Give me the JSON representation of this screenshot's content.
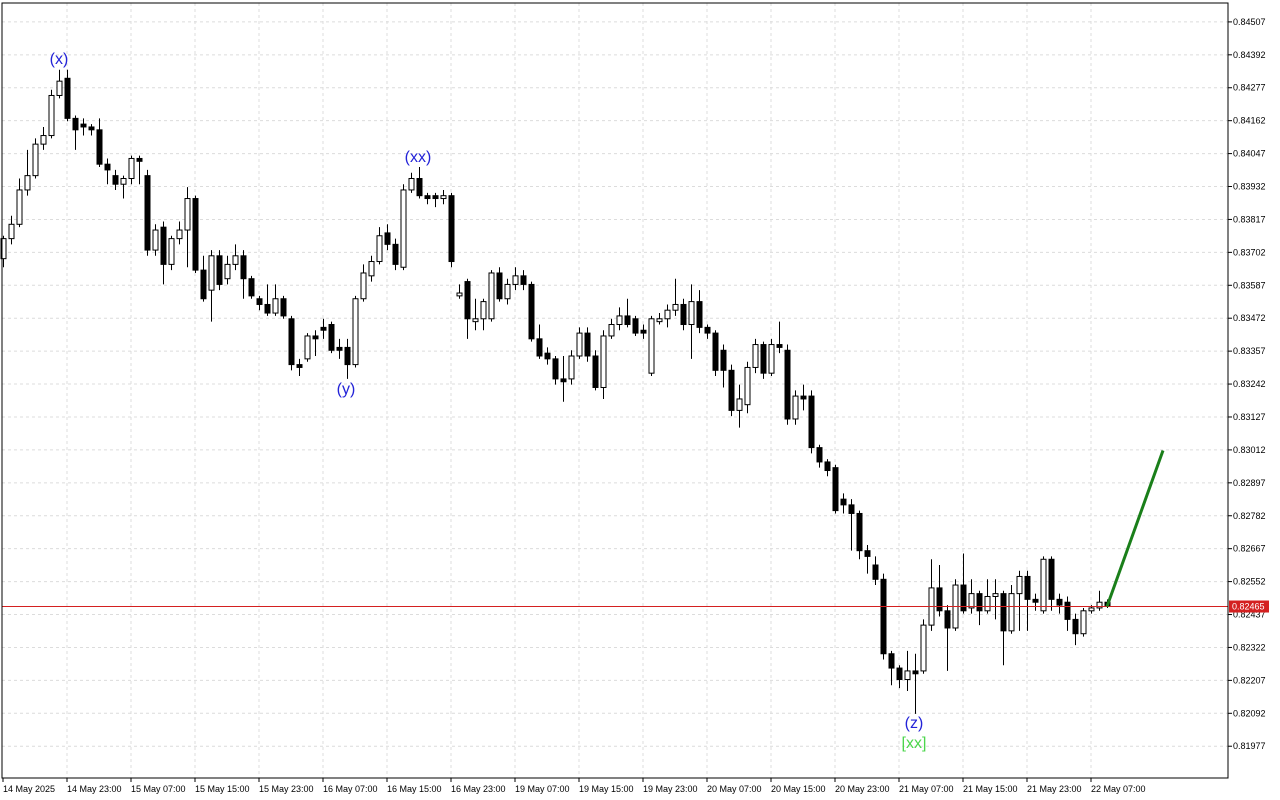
{
  "chart_data": {
    "type": "candlestick",
    "categories": [
      "14 May 2025",
      null,
      null,
      null,
      null,
      null,
      null,
      null,
      "14 May 23:00",
      null,
      null,
      null,
      null,
      null,
      null,
      null,
      "15 May 07:00",
      null,
      null,
      null,
      null,
      null,
      null,
      null,
      "15 May 15:00",
      null,
      null,
      null,
      null,
      null,
      null,
      null,
      "15 May 23:00",
      null,
      null,
      null,
      null,
      null,
      null,
      null,
      "16 May 07:00",
      null,
      null,
      null,
      null,
      null,
      null,
      null,
      "16 May 15:00",
      null,
      null,
      null,
      null,
      null,
      null,
      null,
      "16 May 23:00",
      null,
      null,
      null,
      null,
      null,
      null,
      null,
      "19 May 07:00",
      null,
      null,
      null,
      null,
      null,
      null,
      null,
      "19 May 15:00",
      null,
      null,
      null,
      null,
      null,
      null,
      null,
      "19 May 23:00",
      null,
      null,
      null,
      null,
      null,
      null,
      null,
      "20 May 07:00",
      null,
      null,
      null,
      null,
      null,
      null,
      null,
      "20 May 15:00",
      null,
      null,
      null,
      null,
      null,
      null,
      null,
      "20 May 23:00",
      null,
      null,
      null,
      null,
      null,
      null,
      null,
      "21 May 07:00",
      null,
      null,
      null,
      null,
      null,
      null,
      null,
      "21 May 15:00",
      null,
      null,
      null,
      null,
      null,
      null,
      null,
      "21 May 23:00",
      null,
      null,
      null,
      null,
      null,
      null,
      null,
      "22 May 07:00",
      null,
      null
    ],
    "open": [
      0.8368,
      0.8375,
      0.838,
      0.8392,
      0.8397,
      0.8408,
      0.8411,
      0.8425,
      0.8431,
      0.8417,
      0.8415,
      0.8414,
      0.8413,
      0.8401,
      0.8397,
      0.8394,
      0.8396,
      0.8403,
      0.8397,
      0.8371,
      0.8379,
      0.8366,
      0.8375,
      0.8378,
      0.8389,
      0.8364,
      0.8357,
      0.8369,
      0.8361,
      0.8366,
      0.8369,
      0.8361,
      0.8354,
      0.8352,
      0.8349,
      0.8354,
      0.8347,
      0.8331,
      0.8333,
      0.8341,
      0.8344,
      0.8345,
      0.8337,
      0.8337,
      0.8331,
      0.8354,
      0.8362,
      0.8367,
      0.8377,
      0.8373,
      0.8365,
      0.8392,
      0.8396,
      0.839,
      0.839,
      0.8389,
      0.839,
      0.8355,
      0.836,
      0.8346,
      0.8347,
      0.8347,
      0.8363,
      0.8354,
      0.8359,
      0.8362,
      0.8359,
      0.834,
      0.8335,
      0.8333,
      0.8326,
      0.8326,
      0.8334,
      0.8342,
      0.8334,
      0.8323,
      0.8341,
      0.8345,
      0.8348,
      0.8347,
      0.8343,
      0.8328,
      0.8346,
      0.8347,
      0.835,
      0.8352,
      0.8345,
      0.8353,
      0.8344,
      0.8342,
      0.8336,
      0.8329,
      0.8315,
      0.8317,
      0.833,
      0.8338,
      0.8328,
      0.8338,
      0.8336,
      0.8312,
      0.832,
      0.832,
      0.8302,
      0.8297,
      0.8295,
      0.8284,
      0.8282,
      0.8279,
      0.8266,
      0.8261,
      0.8256,
      0.823,
      0.8225,
      0.8221,
      0.8224,
      0.8224,
      0.824,
      0.8253,
      0.8245,
      0.8239,
      0.8254,
      0.8246,
      0.8251,
      0.8245,
      0.825,
      0.8251,
      0.8238,
      0.8251,
      0.8257,
      0.8249,
      0.8245,
      0.8263,
      0.8249,
      0.8248,
      0.8242,
      0.8237,
      0.8245,
      0.8246,
      0.8248
    ],
    "high": [
      0.8376,
      0.8383,
      0.8396,
      0.8406,
      0.841,
      0.8414,
      0.8427,
      0.8434,
      0.8434,
      0.8418,
      0.8417,
      0.8415,
      0.8417,
      0.8403,
      0.8399,
      0.8397,
      0.8404,
      0.8404,
      0.8399,
      0.838,
      0.8381,
      0.8376,
      0.8381,
      0.8393,
      0.839,
      0.8369,
      0.8371,
      0.8371,
      0.8369,
      0.8373,
      0.8371,
      0.8362,
      0.8355,
      0.8359,
      0.8359,
      0.8355,
      0.8348,
      0.8333,
      0.8342,
      0.8343,
      0.8347,
      0.8346,
      0.834,
      0.834,
      0.8355,
      0.8366,
      0.8369,
      0.8379,
      0.838,
      0.8375,
      0.8394,
      0.8398,
      0.84,
      0.8391,
      0.8391,
      0.8392,
      0.8391,
      0.8359,
      0.8361,
      0.8354,
      0.8354,
      0.8364,
      0.8365,
      0.8361,
      0.8365,
      0.8364,
      0.836,
      0.8345,
      0.8337,
      0.8334,
      0.8334,
      0.8336,
      0.8344,
      0.8344,
      0.8336,
      0.8343,
      0.8347,
      0.8351,
      0.8354,
      0.8348,
      0.8345,
      0.8348,
      0.8349,
      0.8352,
      0.8361,
      0.8354,
      0.8359,
      0.8357,
      0.8345,
      0.8343,
      0.8338,
      0.8331,
      0.8324,
      0.8332,
      0.834,
      0.8339,
      0.834,
      0.8346,
      0.8338,
      0.8322,
      0.8324,
      0.8322,
      0.8303,
      0.8298,
      0.8296,
      0.8286,
      0.8284,
      0.828,
      0.8268,
      0.8264,
      0.8258,
      0.8231,
      0.8226,
      0.8231,
      0.823,
      0.8242,
      0.8263,
      0.8261,
      0.8247,
      0.8256,
      0.8265,
      0.8256,
      0.8252,
      0.8256,
      0.8256,
      0.8252,
      0.8254,
      0.8259,
      0.8259,
      0.8251,
      0.8264,
      0.8264,
      0.8251,
      0.825,
      0.8244,
      0.8246,
      0.8247,
      0.8252,
      0.8249
    ],
    "low": [
      0.8365,
      0.8373,
      0.8379,
      0.839,
      0.8396,
      0.8406,
      0.841,
      0.8424,
      0.8416,
      0.8406,
      0.8411,
      0.8411,
      0.84,
      0.8394,
      0.8392,
      0.8389,
      0.8394,
      0.8394,
      0.8369,
      0.8369,
      0.8359,
      0.8364,
      0.8373,
      0.8365,
      0.8363,
      0.8353,
      0.8346,
      0.8357,
      0.8359,
      0.8364,
      0.8354,
      0.8354,
      0.835,
      0.8348,
      0.8348,
      0.8347,
      0.8329,
      0.8327,
      0.8332,
      0.8334,
      0.834,
      0.8335,
      0.8333,
      0.8326,
      0.833,
      0.8353,
      0.836,
      0.8366,
      0.8371,
      0.8364,
      0.8364,
      0.8391,
      0.8389,
      0.8387,
      0.8386,
      0.8387,
      0.8365,
      0.8354,
      0.834,
      0.8343,
      0.8343,
      0.8346,
      0.8353,
      0.8352,
      0.8357,
      0.8357,
      0.8339,
      0.8333,
      0.8331,
      0.8324,
      0.8318,
      0.8324,
      0.8333,
      0.8332,
      0.8322,
      0.8319,
      0.834,
      0.8343,
      0.8344,
      0.8341,
      0.834,
      0.8327,
      0.8345,
      0.8344,
      0.8348,
      0.8343,
      0.8333,
      0.8342,
      0.834,
      0.8327,
      0.8323,
      0.8313,
      0.8309,
      0.8314,
      0.8328,
      0.8326,
      0.8327,
      0.8335,
      0.831,
      0.831,
      0.8315,
      0.83,
      0.8295,
      0.8292,
      0.8279,
      0.8279,
      0.8266,
      0.8263,
      0.8258,
      0.8254,
      0.8228,
      0.8219,
      0.8218,
      0.8217,
      0.8209,
      0.8223,
      0.8238,
      0.8243,
      0.8224,
      0.8238,
      0.8244,
      0.8244,
      0.824,
      0.8244,
      0.8242,
      0.8226,
      0.8237,
      0.8238,
      0.8238,
      0.8245,
      0.8244,
      0.8245,
      0.8244,
      0.8238,
      0.8233,
      0.8236,
      0.8244,
      0.8245,
      0.8246
    ],
    "close": [
      0.8375,
      0.838,
      0.8392,
      0.8397,
      0.8408,
      0.8411,
      0.8425,
      0.843,
      0.8417,
      0.8413,
      0.8414,
      0.8413,
      0.8401,
      0.8399,
      0.8394,
      0.8396,
      0.8403,
      0.8402,
      0.8371,
      0.8378,
      0.8366,
      0.8375,
      0.8378,
      0.8389,
      0.8364,
      0.8354,
      0.8369,
      0.8359,
      0.8366,
      0.8369,
      0.8361,
      0.8355,
      0.8352,
      0.8349,
      0.8354,
      0.8348,
      0.8331,
      0.833,
      0.8341,
      0.834,
      0.8343,
      0.8336,
      0.8336,
      0.8331,
      0.8354,
      0.8363,
      0.8367,
      0.8376,
      0.8373,
      0.8366,
      0.8392,
      0.8396,
      0.839,
      0.8389,
      0.8389,
      0.839,
      0.8367,
      0.8356,
      0.8347,
      0.8347,
      0.8353,
      0.8363,
      0.8354,
      0.8359,
      0.8362,
      0.8359,
      0.834,
      0.8334,
      0.8333,
      0.8326,
      0.8325,
      0.8334,
      0.8342,
      0.8334,
      0.8323,
      0.8341,
      0.8345,
      0.8348,
      0.8345,
      0.8342,
      0.8342,
      0.8347,
      0.8347,
      0.835,
      0.8352,
      0.8345,
      0.8353,
      0.8344,
      0.8342,
      0.8329,
      0.8329,
      0.8315,
      0.8319,
      0.833,
      0.8338,
      0.8328,
      0.8338,
      0.8337,
      0.8312,
      0.832,
      0.8319,
      0.8302,
      0.8297,
      0.8294,
      0.828,
      0.8282,
      0.8279,
      0.8266,
      0.8264,
      0.8256,
      0.823,
      0.8225,
      0.8221,
      0.8224,
      0.8223,
      0.824,
      0.8253,
      0.8245,
      0.8239,
      0.8254,
      0.8245,
      0.8251,
      0.8245,
      0.825,
      0.8251,
      0.8238,
      0.8251,
      0.8257,
      0.8249,
      0.8248,
      0.8263,
      0.8249,
      0.8247,
      0.8242,
      0.8237,
      0.8245,
      0.8246,
      0.8248,
      0.82465
    ],
    "up_color": "#ffffff",
    "down_color": "#000000",
    "wick_color": "#000000",
    "ylim": [
      0.81866,
      0.84573
    ],
    "yticks": [
      0.84507,
      0.84392,
      0.84277,
      0.84162,
      0.84047,
      0.83932,
      0.83817,
      0.83702,
      0.83587,
      0.83472,
      0.83357,
      0.83242,
      0.83127,
      0.83012,
      0.82897,
      0.82782,
      0.82667,
      0.82552,
      0.82437,
      0.82322,
      0.82207,
      0.82092,
      0.81977
    ],
    "grid": true,
    "current_price": {
      "value": 0.82465,
      "color": "#d42020"
    },
    "forecast": {
      "color": "#1a7f1a",
      "x": [
        138,
        145
      ],
      "values": [
        0.82465,
        0.8301
      ]
    },
    "annotations": [
      {
        "text": "(x)",
        "color": "#2323d8"
      },
      {
        "text": "(xx)",
        "color": "#2323d8"
      },
      {
        "text": "(y)",
        "color": "#2323d8"
      },
      {
        "text": "(z)",
        "color": "#2323d8"
      },
      {
        "text": "[xx]",
        "color": "#4cd64c"
      }
    ]
  }
}
